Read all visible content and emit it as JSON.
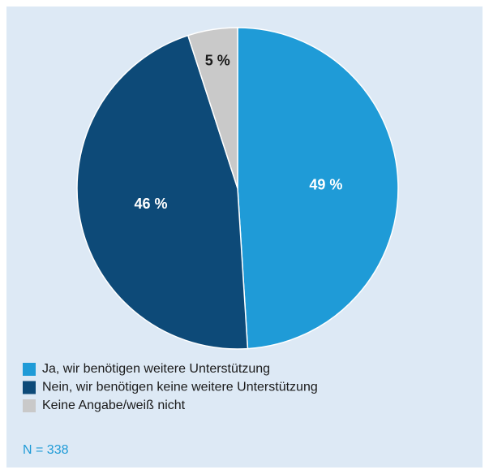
{
  "chart_data": {
    "type": "pie",
    "categories": [
      "Ja, wir benötigen weitere Unterstützung",
      "Nein, wir benötigen keine weitere Unterstützung",
      "Keine Angabe/weiß nicht"
    ],
    "values": [
      49,
      46,
      5
    ],
    "value_labels": [
      "49 %",
      "46 %",
      "5 %"
    ],
    "colors": [
      "#1f9bd7",
      "#0d4a78",
      "#c9c9c9"
    ],
    "annotation": "N = 338"
  }
}
